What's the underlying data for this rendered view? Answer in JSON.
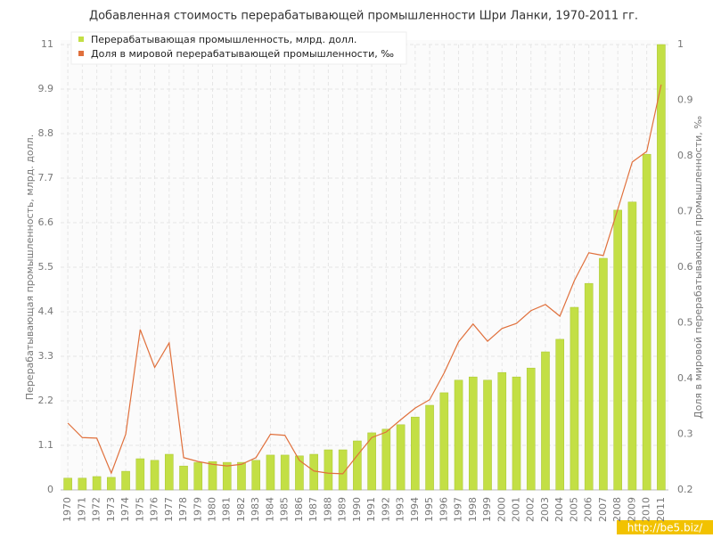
{
  "chart_data": {
    "type": "bar",
    "title": "Добавленная стоимость перерабатывающей промышленности Шри Ланки, 1970-2011 гг.",
    "y_label": "Перерабатывающая промышленность, млрд. долл.",
    "y2_label": "Доля в мировой перерабатывающей промышленности, ‰",
    "watermark": "http://be5.biz/",
    "categories": [
      "1970",
      "1971",
      "1972",
      "1973",
      "1974",
      "1975",
      "1976",
      "1977",
      "1978",
      "1979",
      "1980",
      "1981",
      "1982",
      "1983",
      "1984",
      "1985",
      "1986",
      "1987",
      "1988",
      "1989",
      "1990",
      "1991",
      "1992",
      "1993",
      "1994",
      "1995",
      "1996",
      "1997",
      "1998",
      "1999",
      "2000",
      "2001",
      "2002",
      "2003",
      "2004",
      "2005",
      "2006",
      "2007",
      "2008",
      "2009",
      "2010",
      "2011"
    ],
    "series": [
      {
        "name": "Перерабатывающая промышленность, млрд. долл.",
        "type": "bar",
        "color": "#c3df45",
        "values": [
          0.29,
          0.29,
          0.33,
          0.31,
          0.46,
          0.77,
          0.73,
          0.88,
          0.59,
          0.68,
          0.7,
          0.68,
          0.68,
          0.73,
          0.86,
          0.86,
          0.84,
          0.88,
          0.99,
          0.99,
          1.21,
          1.41,
          1.5,
          1.61,
          1.8,
          2.09,
          2.4,
          2.71,
          2.79,
          2.71,
          2.9,
          2.79,
          3.01,
          3.41,
          3.72,
          4.51,
          5.1,
          5.72,
          6.91,
          7.11,
          8.29,
          11.0
        ]
      },
      {
        "name": "Доля в мировой перерабатывающей промышленности, ‰",
        "type": "line",
        "color": "#e0703c",
        "axis": "y2",
        "values": [
          0.32,
          0.294,
          0.293,
          0.23,
          0.3,
          0.488,
          0.42,
          0.464,
          0.258,
          0.251,
          0.246,
          0.243,
          0.246,
          0.258,
          0.3,
          0.298,
          0.253,
          0.234,
          0.23,
          0.229,
          0.262,
          0.294,
          0.304,
          0.326,
          0.347,
          0.362,
          0.41,
          0.466,
          0.498,
          0.467,
          0.49,
          0.499,
          0.522,
          0.533,
          0.512,
          0.576,
          0.626,
          0.621,
          0.704,
          0.789,
          0.808,
          0.928
        ]
      }
    ],
    "ylim": [
      0,
      11
    ],
    "yticks": [
      0,
      1.1,
      2.2,
      3.3,
      4.4,
      5.5,
      6.6,
      7.7,
      8.8,
      9.9,
      11
    ],
    "y2lim": [
      0.2,
      1
    ],
    "y2ticks": [
      0.2,
      0.3,
      0.4,
      0.5,
      0.6,
      0.7,
      0.8,
      0.9,
      1
    ],
    "grid": true,
    "legend": "top-left"
  }
}
